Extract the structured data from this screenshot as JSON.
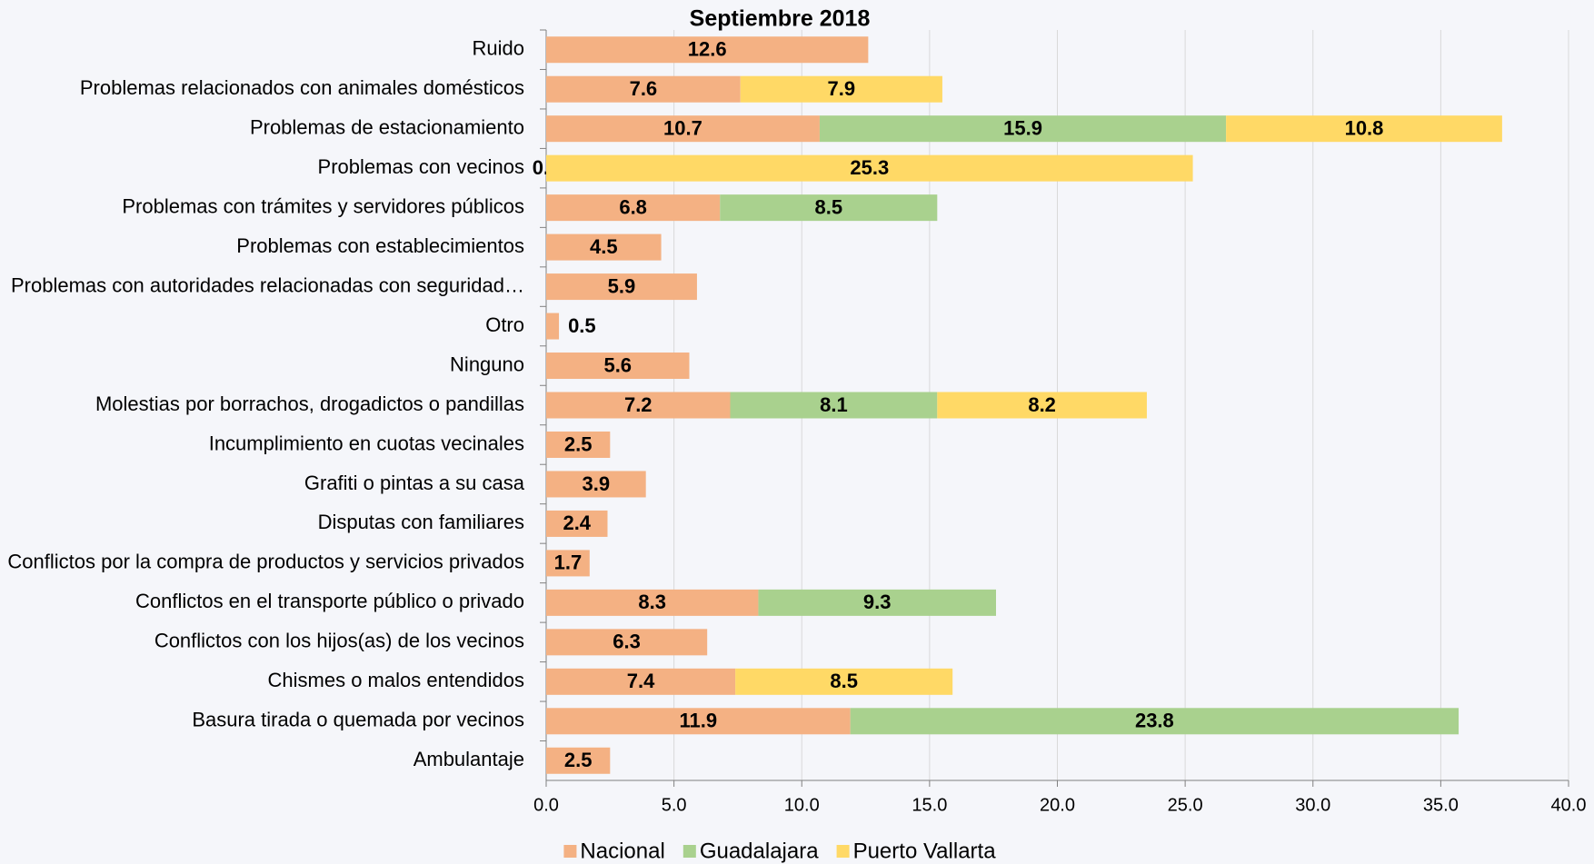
{
  "chart_data": {
    "type": "stacked-bar-horizontal",
    "title": "Septiembre 2018",
    "categories": [
      "Ruido",
      "Problemas relacionados con animales domésticos",
      "Problemas de estacionamiento",
      "Problemas con vecinos",
      "Problemas con trámites y servidores públicos",
      "Problemas con establecimientos",
      "Problemas con autoridades relacionadas con seguridad…",
      "Otro",
      "Ninguno",
      "Molestias por borrachos, drogadictos o pandillas",
      "Incumplimiento en cuotas vecinales",
      "Grafiti o pintas a su casa",
      "Disputas con familiares",
      "Conflictos por la compra de productos y servicios privados",
      "Conflictos en el transporte público o privado",
      "Conflictos con los hijos(as) de los vecinos",
      "Chismes o malos entendidos",
      "Basura tirada o quemada por vecinos",
      "Ambulantaje"
    ],
    "series": [
      {
        "name": "Nacional",
        "color": "#f4b183",
        "values": [
          12.6,
          7.6,
          10.7,
          0,
          6.8,
          4.5,
          5.9,
          0.5,
          5.6,
          7.2,
          2.5,
          3.9,
          2.4,
          1.7,
          8.3,
          6.3,
          7.4,
          11.9,
          2.5
        ],
        "value_labels": [
          "12.6",
          "7.6",
          "10.7",
          "0.0",
          "6.8",
          "4.5",
          "5.9",
          "0.5",
          "5.6",
          "7.2",
          "2.5",
          "3.9",
          "2.4",
          "1.7",
          "8.3",
          "6.3",
          "7.4",
          "11.9",
          "2.5"
        ]
      },
      {
        "name": "Guadalajara",
        "color": "#a9d18e",
        "values": [
          null,
          null,
          15.9,
          null,
          8.5,
          null,
          null,
          null,
          null,
          8.1,
          null,
          null,
          null,
          null,
          9.3,
          null,
          null,
          23.8,
          null
        ],
        "value_labels": [
          null,
          null,
          "15.9",
          null,
          "8.5",
          null,
          null,
          null,
          null,
          "8.1",
          null,
          null,
          null,
          null,
          "9.3",
          null,
          null,
          "23.8",
          null
        ]
      },
      {
        "name": "Puerto Vallarta",
        "color": "#ffd966",
        "values": [
          null,
          7.9,
          10.8,
          25.3,
          null,
          null,
          null,
          null,
          null,
          8.2,
          null,
          null,
          null,
          null,
          null,
          null,
          8.5,
          null,
          null
        ],
        "value_labels": [
          null,
          "7.9",
          "10.8",
          "25.3",
          null,
          null,
          null,
          null,
          null,
          "8.2",
          null,
          null,
          null,
          null,
          null,
          null,
          "8.5",
          null,
          null
        ]
      }
    ],
    "xlim": [
      0,
      40
    ],
    "xticks": [
      {
        "value": 0,
        "label": "0.0"
      },
      {
        "value": 5,
        "label": "5.0"
      },
      {
        "value": 10,
        "label": "10.0"
      },
      {
        "value": 15,
        "label": "15.0"
      },
      {
        "value": 20,
        "label": "20.0"
      },
      {
        "value": 25,
        "label": "25.0"
      },
      {
        "value": 30,
        "label": "30.0"
      },
      {
        "value": 35,
        "label": "35.0"
      },
      {
        "value": 40,
        "label": "40.0"
      }
    ],
    "grid": true,
    "legend": "bottom"
  }
}
